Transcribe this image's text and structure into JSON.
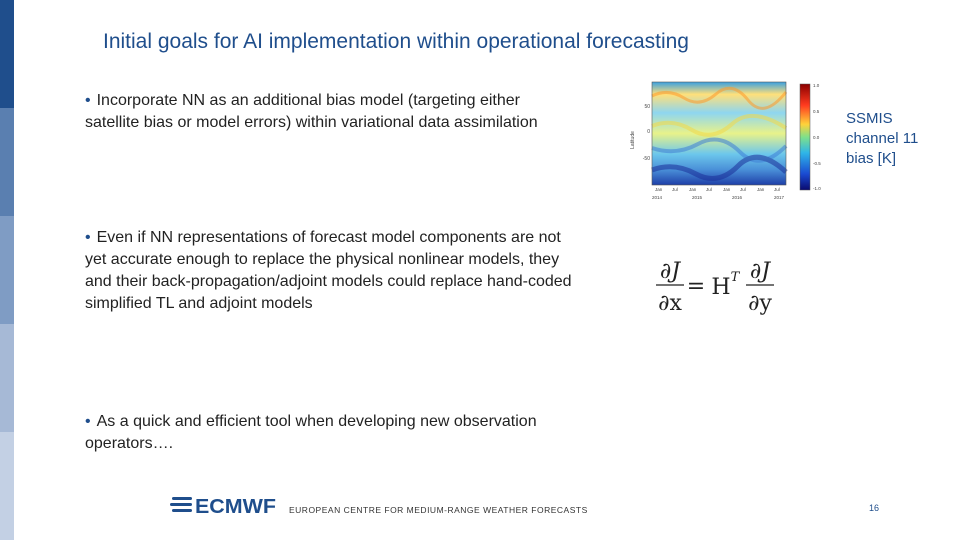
{
  "slide": {
    "title": "Initial goals for AI implementation within operational forecasting",
    "bullets": [
      "Incorporate NN as an additional bias model (targeting either satellite bias or model errors) within variational data assimilation",
      "Even if NN representations of forecast model components are not yet accurate enough to replace the physical nonlinear models, they and their back-propagation/adjoint models could replace hand-coded simplified TL and adjoint models",
      "As a quick and efficient tool when developing new observation operators…."
    ],
    "bullet_marker": "•"
  },
  "figure": {
    "label": "SSMIS channel 11 bias [K]",
    "ylabel": "Latitude",
    "yticks": [
      "50",
      "0",
      "-50"
    ],
    "xticks": [
      "Jan",
      "Jul",
      "Jan",
      "Jul",
      "Jan",
      "Jul",
      "Jan",
      "Jul"
    ],
    "years": [
      "2014",
      "2015",
      "2016",
      "2017"
    ],
    "colorbar_ticks": [
      "1.0",
      "0.5",
      "0.0",
      "-0.5",
      "-1.0"
    ]
  },
  "equation": {
    "lhs_num": "∂J",
    "lhs_den": "∂x",
    "mid": "H",
    "sup": "T",
    "rhs_num": "∂J",
    "rhs_den": "∂y",
    "equals": "="
  },
  "footer": {
    "logo_text": "ECMWF",
    "org_name": "EUROPEAN CENTRE FOR MEDIUM-RANGE WEATHER FORECASTS",
    "page_number": "16"
  },
  "colors": {
    "accent": "#1f4e8c",
    "stripe": [
      "#1f4e8c",
      "#5a7fb0",
      "#7f9cc4",
      "#a6b9d6",
      "#c3d0e4"
    ]
  }
}
